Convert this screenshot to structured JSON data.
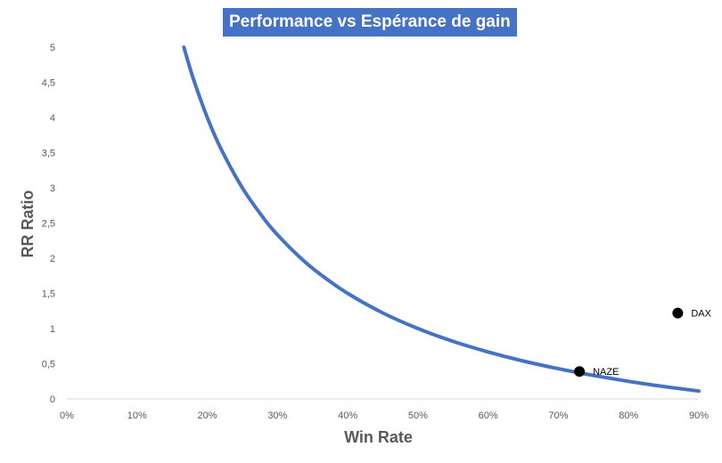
{
  "chart_data": {
    "type": "scatter",
    "title": "Performance vs Espérance de gain",
    "xlabel": "Win Rate",
    "ylabel": "RR Ratio",
    "xlim": [
      0,
      0.9
    ],
    "ylim": [
      0,
      5
    ],
    "x_ticks": [
      0,
      0.1,
      0.2,
      0.3,
      0.4,
      0.5,
      0.6,
      0.7,
      0.8,
      0.9
    ],
    "x_tick_labels": [
      "0%",
      "10%",
      "20%",
      "30%",
      "40%",
      "50%",
      "60%",
      "70%",
      "80%",
      "90%"
    ],
    "y_ticks": [
      0,
      0.5,
      1,
      1.5,
      2,
      2.5,
      3,
      3.5,
      4,
      4.5,
      5
    ],
    "y_tick_labels": [
      "0",
      "0,5",
      "1",
      "1,5",
      "2",
      "2,5",
      "3",
      "3,5",
      "4",
      "4,5",
      "5"
    ],
    "grid": false,
    "series": [
      {
        "type": "line",
        "color": "#4472C4",
        "x": [
          0.1667,
          0.18,
          0.2,
          0.22,
          0.25,
          0.28,
          0.3,
          0.33,
          0.36,
          0.4,
          0.45,
          0.5,
          0.55,
          0.6,
          0.65,
          0.7,
          0.75,
          0.8,
          0.85,
          0.9
        ],
        "y": [
          5.0,
          4.556,
          4.0,
          3.545,
          3.0,
          2.571,
          2.333,
          2.03,
          1.778,
          1.5,
          1.222,
          1.0,
          0.818,
          0.667,
          0.538,
          0.429,
          0.333,
          0.25,
          0.176,
          0.111
        ]
      },
      {
        "type": "scatter",
        "color": "#000000",
        "points": [
          {
            "label": "NAZE",
            "x": 0.73,
            "y": 0.39
          },
          {
            "label": "DAX",
            "x": 0.87,
            "y": 1.22
          }
        ]
      }
    ]
  }
}
